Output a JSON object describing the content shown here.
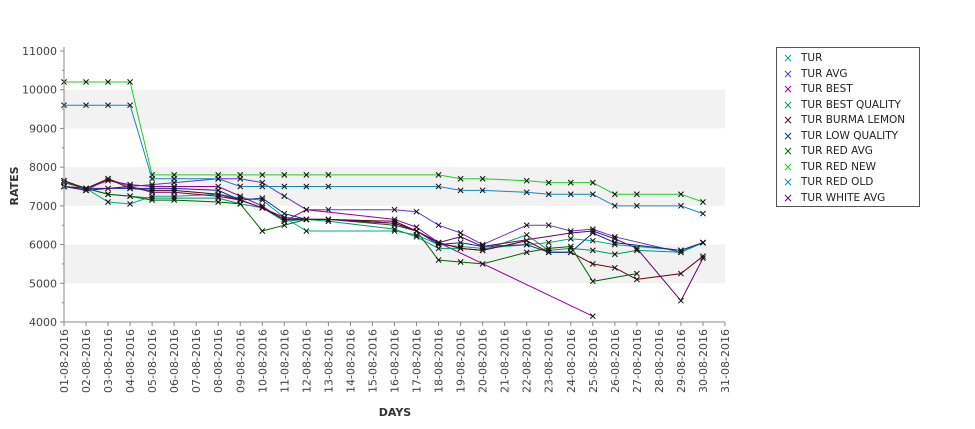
{
  "chart_data": {
    "type": "line",
    "title": "",
    "xlabel": "DAYS",
    "ylabel": "RATES",
    "ylim": [
      4000,
      11000
    ],
    "yticks": [
      4000,
      5000,
      6000,
      7000,
      8000,
      9000,
      10000,
      11000
    ],
    "grid": "horizontal alternating bands",
    "legend_position": "right",
    "x": [
      "01-08-2016",
      "02-08-2016",
      "03-08-2016",
      "04-08-2016",
      "05-08-2016",
      "06-08-2016",
      "07-08-2016",
      "08-08-2016",
      "09-08-2016",
      "10-08-2016",
      "11-08-2016",
      "12-08-2016",
      "13-08-2016",
      "14-08-2016",
      "15-08-2016",
      "16-08-2016",
      "17-08-2016",
      "18-08-2016",
      "19-08-2016",
      "20-08-2016",
      "21-08-2016",
      "22-08-2016",
      "23-08-2016",
      "24-08-2016",
      "25-08-2016",
      "26-08-2016",
      "27-08-2016",
      "28-08-2016",
      "29-08-2016",
      "30-08-2016",
      "31-08-2016"
    ],
    "series": [
      {
        "name": "TUR",
        "color": "#00aa88",
        "values": [
          7500,
          7450,
          7100,
          7050,
          7250,
          7250,
          null,
          7300,
          7200,
          7150,
          6700,
          6350,
          null,
          null,
          null,
          6350,
          6250,
          6000,
          5950,
          5900,
          null,
          6000,
          6050,
          6150,
          6100,
          6000,
          null,
          null,
          5850,
          6050,
          null
        ]
      },
      {
        "name": "TUR AVG",
        "color": "#6633cc",
        "values": [
          7650,
          7400,
          7700,
          7500,
          7550,
          7600,
          null,
          7700,
          7700,
          7600,
          7250,
          6900,
          6900,
          null,
          null,
          6900,
          6850,
          6500,
          6300,
          6000,
          null,
          6500,
          6500,
          6350,
          6400,
          6200,
          null,
          null,
          5800,
          6050,
          null
        ]
      },
      {
        "name": "TUR BEST",
        "color": "#990099",
        "values": [
          7500,
          7450,
          7650,
          7550,
          7500,
          7500,
          null,
          7500,
          7250,
          7000,
          6600,
          6900,
          null,
          null,
          null,
          6650,
          6450,
          6050,
          null,
          null,
          null,
          null,
          null,
          null,
          4150,
          null,
          null,
          null,
          null,
          null,
          null
        ]
      },
      {
        "name": "TUR BEST QUALITY",
        "color": "#009966",
        "values": [
          7500,
          7450,
          7300,
          7250,
          7200,
          7200,
          null,
          7200,
          7050,
          6950,
          6600,
          6650,
          6600,
          null,
          null,
          6400,
          6200,
          5900,
          5900,
          5850,
          null,
          6250,
          5850,
          5900,
          5850,
          5750,
          5850,
          null,
          5800,
          6050,
          null
        ]
      },
      {
        "name": "TUR BURMA LEMON",
        "color": "#660000",
        "values": [
          7650,
          7450,
          7700,
          7450,
          7400,
          7400,
          null,
          7300,
          7150,
          6950,
          6650,
          6650,
          6650,
          null,
          null,
          6600,
          6350,
          6050,
          5900,
          5850,
          null,
          6100,
          5800,
          5800,
          5500,
          5400,
          5100,
          null,
          5250,
          5700,
          null
        ]
      },
      {
        "name": "TUR LOW QUALITY",
        "color": "#003399",
        "values": [
          7500,
          7450,
          7450,
          7450,
          7450,
          7450,
          null,
          7400,
          7150,
          7200,
          6800,
          6650,
          6650,
          null,
          null,
          6550,
          6350,
          6000,
          6050,
          5950,
          null,
          6000,
          5800,
          5800,
          6300,
          6050,
          null,
          null,
          5850,
          6050,
          null
        ]
      },
      {
        "name": "TUR RED AVG",
        "color": "#006600",
        "values": [
          7600,
          7450,
          7300,
          7250,
          7150,
          7150,
          null,
          7100,
          7050,
          6350,
          6500,
          6650,
          6650,
          null,
          null,
          6500,
          6350,
          5600,
          5550,
          5500,
          null,
          5800,
          5900,
          5950,
          5050,
          null,
          5250,
          null,
          null,
          null,
          null
        ]
      },
      {
        "name": "TUR RED NEW",
        "color": "#22cc22",
        "values": [
          10200,
          10200,
          10200,
          10200,
          7800,
          7800,
          null,
          7800,
          7800,
          7800,
          7800,
          7800,
          7800,
          null,
          null,
          null,
          null,
          7800,
          7700,
          7700,
          null,
          7650,
          7600,
          7600,
          7600,
          7300,
          7300,
          null,
          7300,
          7100,
          null
        ]
      },
      {
        "name": "TUR RED OLD",
        "color": "#1188bb",
        "values": [
          9600,
          9600,
          9600,
          9600,
          7700,
          7700,
          null,
          7700,
          7500,
          7500,
          7500,
          7500,
          7500,
          null,
          null,
          null,
          null,
          7500,
          7400,
          7400,
          null,
          7350,
          7300,
          7300,
          7300,
          7000,
          7000,
          null,
          7000,
          6800,
          null
        ]
      },
      {
        "name": "TUR WHITE AVG",
        "color": "#660066",
        "values": [
          7500,
          7400,
          null,
          7500,
          7350,
          7350,
          null,
          7250,
          7150,
          6950,
          6700,
          6650,
          6650,
          null,
          null,
          6550,
          6350,
          6050,
          6200,
          5950,
          null,
          null,
          null,
          6300,
          6350,
          6150,
          5900,
          null,
          4550,
          5650,
          null
        ]
      }
    ]
  }
}
